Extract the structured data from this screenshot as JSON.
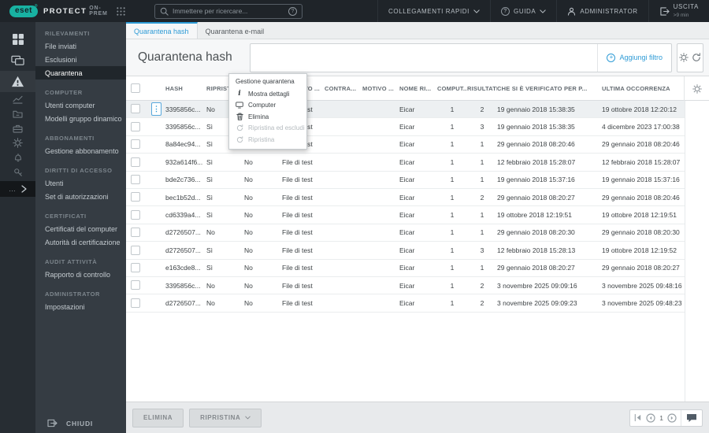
{
  "colors": {
    "brand_teal": "#18b2a2",
    "accent_blue": "#2e9bd6"
  },
  "header": {
    "brand": {
      "logo_text": "eset",
      "product": "PROTECT",
      "edition": "ON-PREM"
    },
    "search": {
      "placeholder": "Immettere per ricercare..."
    },
    "quick_links_label": "COLLEGAMENTI RAPIDI",
    "help_label": "GUIDA",
    "user_label": "ADMINISTRATOR",
    "logout_label": "USCITA",
    "logout_sub": ">9 min"
  },
  "sidebar": {
    "rail_icons": [
      "dashboard-grid-icon",
      "computers-icon",
      "detections-warning-icon",
      "reports-chart-icon",
      "tasks-folder-icon",
      "installers-box-icon",
      "policies-gear-icon",
      "notifications-icon",
      "status-key-icon",
      "more-ellipsis-icon",
      "expand-chevron-icon"
    ],
    "sections": [
      {
        "title": "RILEVAMENTI",
        "items": [
          "File inviati",
          "Esclusioni",
          "Quarantena"
        ]
      },
      {
        "title": "COMPUTER",
        "items": [
          "Utenti computer",
          "Modelli gruppo dinamico"
        ]
      },
      {
        "title": "ABBONAMENTI",
        "items": [
          "Gestione abbonamento"
        ]
      },
      {
        "title": "DIRITTI DI ACCESSO",
        "items": [
          "Utenti",
          "Set di autorizzazioni"
        ]
      },
      {
        "title": "CERTIFICATI",
        "items": [
          "Certificati del computer",
          "Autorità di certificazione"
        ]
      },
      {
        "title": "AUDIT ATTIVITÀ",
        "items": [
          "Rapporto di controllo"
        ]
      },
      {
        "title": "ADMINISTRATOR",
        "items": [
          "Impostazioni"
        ]
      }
    ],
    "active_item": "Quarantena",
    "collapse_label": "CHIUDI"
  },
  "tabs": [
    {
      "label": "Quarantena hash",
      "active": true
    },
    {
      "label": "Quarantena e-mail",
      "active": false
    }
  ],
  "page": {
    "title": "Quarantena hash",
    "add_filter_label": "Aggiungi filtro"
  },
  "table": {
    "columns": [
      "HASH",
      "RIPRIST...",
      "CARICA...",
      "OGGETTO ...",
      "CONTRA...",
      "MOTIVO ...",
      "NOME RI...",
      "COMPUT...",
      "RISULTATI",
      "CHE SI È VERIFICATO PER P...",
      "ULTIMA OCCORRENZA"
    ],
    "selected_row_index": 0,
    "rows": [
      [
        "3395856c...",
        "No",
        "No",
        "File di test",
        "",
        "",
        "Eicar",
        "1",
        "2",
        "19 gennaio 2018 15:38:35",
        "19 ottobre 2018 12:20:12"
      ],
      [
        "3395856c...",
        "Sì",
        "No",
        "File di test",
        "",
        "",
        "Eicar",
        "1",
        "3",
        "19 gennaio 2018 15:38:35",
        "4 dicembre 2023 17:00:38"
      ],
      [
        "8a84ec94...",
        "Sì",
        "No",
        "File di test",
        "",
        "",
        "Eicar",
        "1",
        "1",
        "29 gennaio 2018 08:20:46",
        "29 gennaio 2018 08:20:46"
      ],
      [
        "932a614f6...",
        "Sì",
        "No",
        "File di test",
        "",
        "",
        "Eicar",
        "1",
        "1",
        "12 febbraio 2018 15:28:07",
        "12 febbraio 2018 15:28:07"
      ],
      [
        "bde2c736...",
        "Sì",
        "No",
        "File di test",
        "",
        "",
        "Eicar",
        "1",
        "1",
        "19 gennaio 2018 15:37:16",
        "19 gennaio 2018 15:37:16"
      ],
      [
        "bec1b52d...",
        "Sì",
        "No",
        "File di test",
        "",
        "",
        "Eicar",
        "1",
        "2",
        "29 gennaio 2018 08:20:27",
        "29 gennaio 2018 08:20:46"
      ],
      [
        "cd6339a4...",
        "Sì",
        "No",
        "File di test",
        "",
        "",
        "Eicar",
        "1",
        "1",
        "19 ottobre 2018 12:19:51",
        "19 ottobre 2018 12:19:51"
      ],
      [
        "d2726507...",
        "No",
        "No",
        "File di test",
        "",
        "",
        "Eicar",
        "1",
        "1",
        "29 gennaio 2018 08:20:30",
        "29 gennaio 2018 08:20:30"
      ],
      [
        "d2726507...",
        "Sì",
        "No",
        "File di test",
        "",
        "",
        "Eicar",
        "1",
        "3",
        "12 febbraio 2018 15:28:13",
        "19 ottobre 2018 12:19:52"
      ],
      [
        "e163cde8...",
        "Sì",
        "No",
        "File di test",
        "",
        "",
        "Eicar",
        "1",
        "1",
        "29 gennaio 2018 08:20:27",
        "29 gennaio 2018 08:20:27"
      ],
      [
        "3395856c...",
        "No",
        "No",
        "File di test",
        "",
        "",
        "Eicar",
        "1",
        "2",
        "3 novembre 2025 09:09:16",
        "3 novembre 2025 09:48:16"
      ],
      [
        "d2726507...",
        "No",
        "No",
        "File di test",
        "",
        "",
        "Eicar",
        "1",
        "2",
        "3 novembre 2025 09:09:23",
        "3 novembre 2025 09:48:23"
      ]
    ]
  },
  "menu": {
    "title": "Gestione quarantena",
    "items": [
      {
        "label": "Mostra dettagli",
        "icon": "info-icon",
        "enabled": true
      },
      {
        "label": "Computer",
        "icon": "computer-icon",
        "enabled": true
      },
      {
        "label": "Elimina",
        "icon": "trash-icon",
        "enabled": true
      },
      {
        "label": "Ripristina ed escludi",
        "icon": "restore-icon",
        "enabled": false
      },
      {
        "label": "Ripristina",
        "icon": "restore-icon",
        "enabled": false
      }
    ]
  },
  "footer": {
    "delete_label": "ELIMINA",
    "restore_label": "RIPRISTINA",
    "page_number": "1"
  }
}
